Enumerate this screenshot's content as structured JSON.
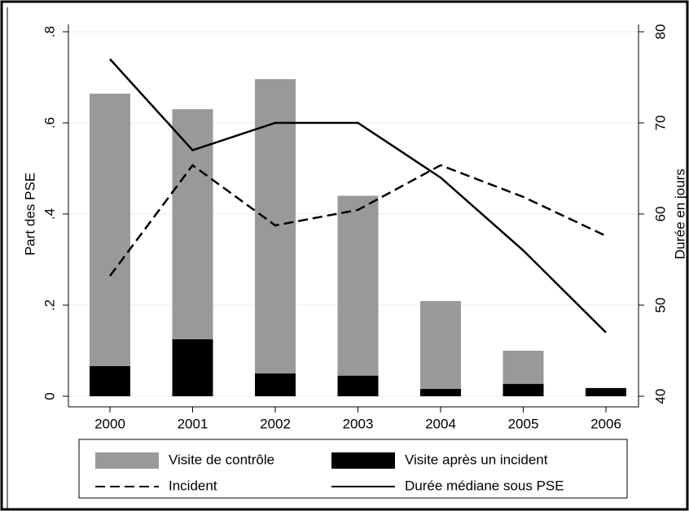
{
  "chart_data": {
    "type": "bar_line",
    "categories": [
      "2000",
      "2001",
      "2002",
      "2003",
      "2004",
      "2005",
      "2006"
    ],
    "series": [
      {
        "name": "Visite de contrôle",
        "type": "bar",
        "color": "#999999",
        "values": [
          0.664,
          0.63,
          0.696,
          0.44,
          0.209,
          0.1,
          0.018
        ]
      },
      {
        "name": "Visite après un incident",
        "type": "bar",
        "color": "#000000",
        "values": [
          0.066,
          0.125,
          0.05,
          0.045,
          0.016,
          0.027,
          0.018
        ]
      },
      {
        "name": "Incident",
        "type": "line",
        "dash": "dashed",
        "color": "#000000",
        "values": [
          0.264,
          0.507,
          0.375,
          0.409,
          0.507,
          0.4375,
          0.352
        ]
      },
      {
        "name": "Durée médiane sous PSE",
        "type": "line",
        "dash": "solid",
        "color": "#000000",
        "axis": "y2",
        "values": [
          77,
          67,
          70,
          70,
          64,
          56,
          47
        ]
      }
    ],
    "ylabel": "Part des PSE",
    "y2label": "Durée en jours",
    "ylim": [
      0,
      0.8
    ],
    "yticks": [
      0,
      {
        "value": 0.2,
        "label": ".2"
      },
      {
        "value": 0.4,
        "label": ".4"
      },
      {
        "value": 0.6,
        "label": ".6"
      },
      {
        "value": 0.8,
        "label": ".8"
      }
    ],
    "y2lim": [
      40,
      80
    ],
    "y2ticks": [
      40,
      50,
      60,
      70,
      80
    ],
    "grid": true,
    "legend": "bottom"
  }
}
